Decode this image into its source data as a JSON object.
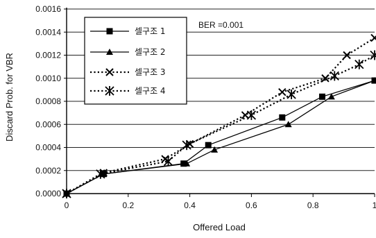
{
  "chart_data": {
    "type": "line",
    "xlabel": "Offered Load",
    "ylabel": "Discard Prob. for VBR",
    "xlim": [
      0,
      1
    ],
    "ylim": [
      0,
      0.0016
    ],
    "x_ticks": [
      "0",
      "0.2",
      "0.4",
      "0.6",
      "0.8",
      "1"
    ],
    "y_ticks": [
      "0.0000",
      "0.0002",
      "0.0004",
      "0.0006",
      "0.0008",
      "0.0010",
      "0.0012",
      "0.0014",
      "0.0016"
    ],
    "y_tick_values": [
      0,
      0.0002,
      0.0004,
      0.0006,
      0.0008,
      0.001,
      0.0012,
      0.0014,
      0.0016
    ],
    "x_tick_values": [
      0,
      0.2,
      0.4,
      0.6,
      0.8,
      1.0
    ],
    "grid": "horizontal",
    "legend_position": "top-left",
    "annotation": "BER =0.001",
    "series": [
      {
        "name": "셀구조 1",
        "style": "solid",
        "marker": "square",
        "x": [
          0.0,
          0.12,
          0.38,
          0.46,
          0.7,
          0.83,
          1.0
        ],
        "y": [
          0.0,
          0.00017,
          0.00026,
          0.00042,
          0.00066,
          0.00084,
          0.00098
        ]
      },
      {
        "name": "셀구조 2",
        "style": "solid",
        "marker": "triangle",
        "x": [
          0.0,
          0.12,
          0.39,
          0.48,
          0.72,
          0.86,
          1.0
        ],
        "y": [
          0.0,
          0.00017,
          0.00026,
          0.00038,
          0.0006,
          0.00084,
          0.00098
        ]
      },
      {
        "name": "셀구조 3",
        "style": "dotted",
        "marker": "x",
        "x": [
          0.0,
          0.12,
          0.32,
          0.4,
          0.58,
          0.7,
          0.84,
          0.91,
          1.0
        ],
        "y": [
          0.0,
          0.00018,
          0.0003,
          0.00043,
          0.00068,
          0.00088,
          0.001,
          0.0012,
          0.00135
        ]
      },
      {
        "name": "셀구조 4",
        "style": "dotted",
        "marker": "asterisk",
        "x": [
          0.0,
          0.11,
          0.33,
          0.39,
          0.6,
          0.73,
          0.87,
          0.95,
          1.0
        ],
        "y": [
          0.0,
          0.00017,
          0.00028,
          0.00042,
          0.00068,
          0.00086,
          0.00102,
          0.00112,
          0.0012
        ]
      }
    ]
  }
}
